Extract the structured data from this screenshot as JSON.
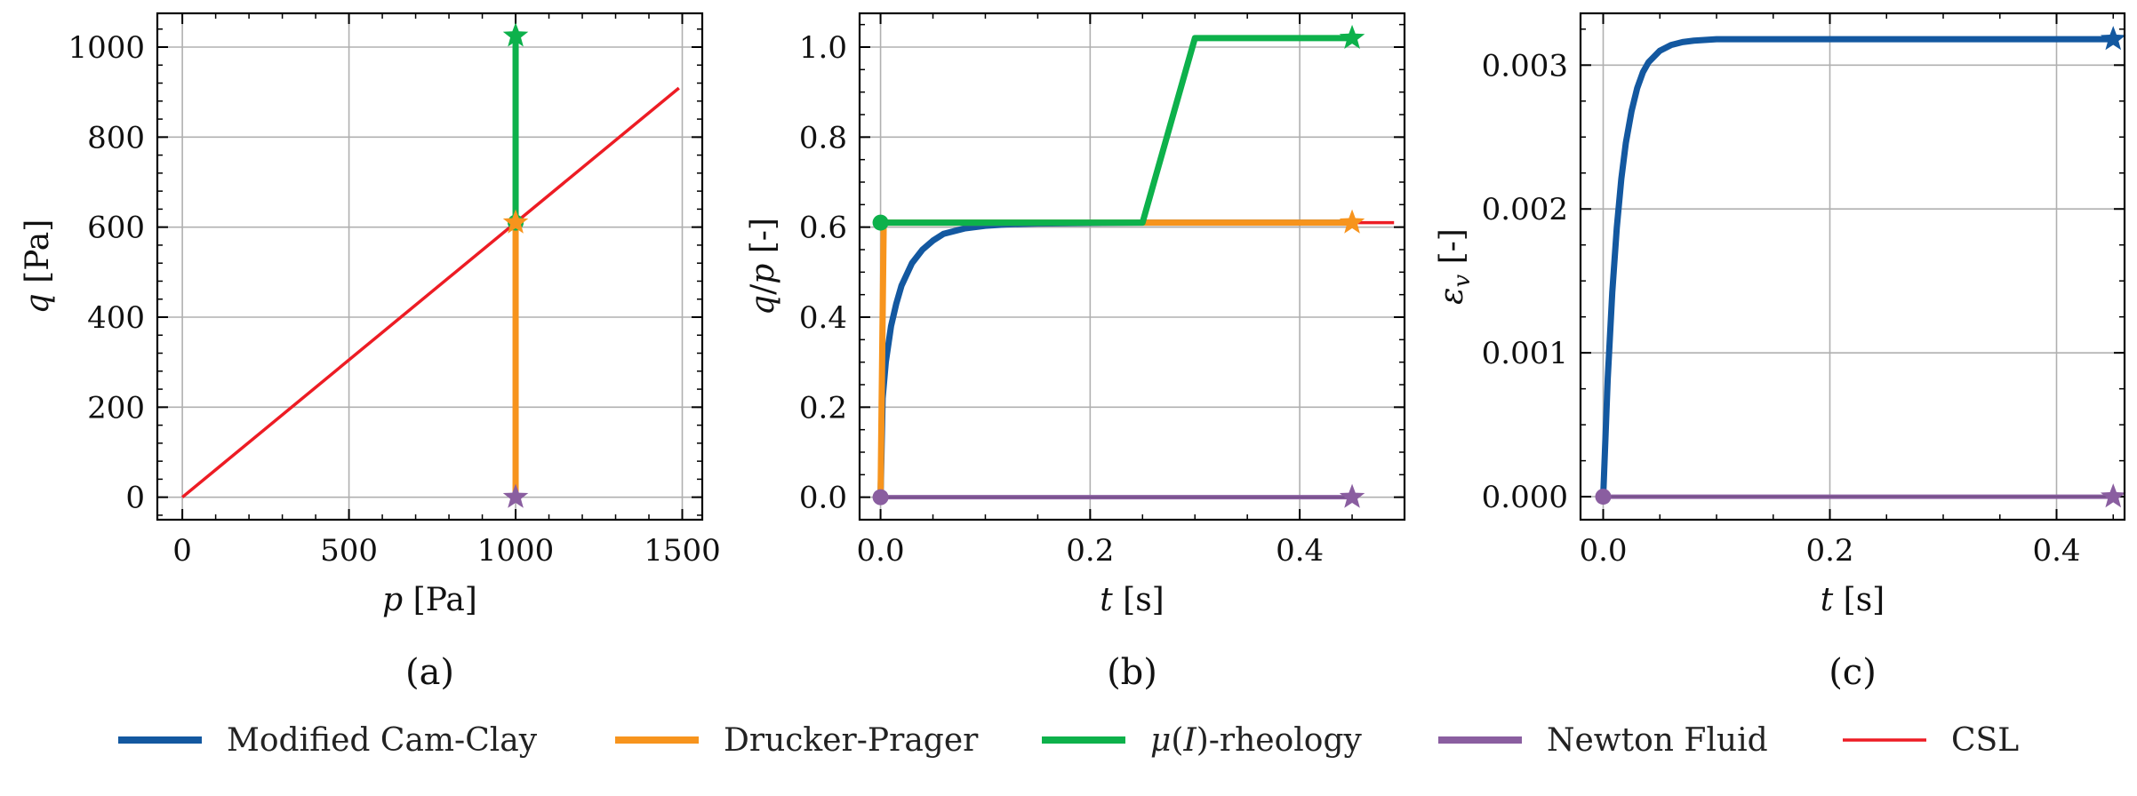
{
  "colors": {
    "mcc": "#1358a0",
    "dp": "#f7941d",
    "mu": "#0db14b",
    "newton": "#8a5ea0",
    "csl": "#ed1c24"
  },
  "legend": [
    {
      "label": "Modified Cam-Clay",
      "color": "#1358a0"
    },
    {
      "label": "Drucker-Prager",
      "color": "#f7941d"
    },
    {
      "label": "μ(I)-rheology",
      "color": "#0db14b"
    },
    {
      "label": "Newton Fluid",
      "color": "#8a5ea0"
    },
    {
      "label": "CSL",
      "color": "#ed1c24"
    }
  ],
  "chart_data": [
    {
      "type": "line",
      "caption": "(a)",
      "xlabel": "p [Pa]",
      "ylabel": "q [Pa]",
      "xlim": [
        -75,
        1560
      ],
      "ylim": [
        -50,
        1075
      ],
      "xticks": [
        0,
        500,
        1000,
        1500
      ],
      "yticks": [
        0,
        200,
        400,
        600,
        800,
        1000
      ],
      "grid": true,
      "series": [
        {
          "key": "csl",
          "name": "CSL",
          "x": [
            0,
            1490
          ],
          "y": [
            0,
            909
          ],
          "marker_end": false,
          "marker_start": false
        },
        {
          "key": "mu",
          "name": "μ(I)-rheology",
          "x": [
            1000,
            1000
          ],
          "y": [
            610,
            1025
          ],
          "marker_start": true,
          "marker_end": true
        },
        {
          "key": "dp",
          "name": "Drucker-Prager",
          "x": [
            1000,
            1000,
            1000
          ],
          "y": [
            0,
            610,
            610
          ],
          "marker_start": false,
          "marker_end": true
        },
        {
          "key": "newton",
          "name": "Newton Fluid",
          "x": [
            1000
          ],
          "y": [
            0
          ],
          "marker_start": false,
          "marker_end": true
        }
      ]
    },
    {
      "type": "line",
      "caption": "(b)",
      "xlabel": "t [s]",
      "ylabel": "q/p [-]",
      "xlim": [
        -0.02,
        0.5
      ],
      "ylim": [
        -0.05,
        1.075
      ],
      "xticks": [
        0.0,
        0.2,
        0.4
      ],
      "yticks": [
        0.0,
        0.2,
        0.4,
        0.6,
        0.8,
        1.0
      ],
      "grid": true,
      "series": [
        {
          "key": "csl",
          "name": "CSL",
          "x": [
            0.0,
            0.49
          ],
          "y": [
            0.61,
            0.61
          ],
          "marker_start": false,
          "marker_end": false
        },
        {
          "key": "newton",
          "name": "Newton Fluid",
          "x": [
            0.0,
            0.45
          ],
          "y": [
            0.0,
            0.0
          ],
          "marker_start": true,
          "marker_end": true
        },
        {
          "key": "mcc",
          "name": "Modified Cam-Clay",
          "x": [
            0.0,
            0.002,
            0.005,
            0.01,
            0.015,
            0.02,
            0.03,
            0.04,
            0.05,
            0.06,
            0.08,
            0.1,
            0.12,
            0.15,
            0.2,
            0.25,
            0.3,
            0.35,
            0.4,
            0.45
          ],
          "y": [
            0.0,
            0.22,
            0.3,
            0.38,
            0.43,
            0.47,
            0.52,
            0.55,
            0.57,
            0.585,
            0.597,
            0.603,
            0.606,
            0.608,
            0.609,
            0.61,
            0.61,
            0.61,
            0.61,
            0.61
          ],
          "marker_start": false,
          "marker_end": false
        },
        {
          "key": "dp",
          "name": "Drucker-Prager",
          "x": [
            0.0,
            0.003,
            0.45
          ],
          "y": [
            0.0,
            0.61,
            0.61
          ],
          "marker_start": false,
          "marker_end": true
        },
        {
          "key": "mu",
          "name": "μ(I)-rheology",
          "x": [
            0.0,
            0.25,
            0.3,
            0.45
          ],
          "y": [
            0.61,
            0.61,
            1.02,
            1.02
          ],
          "marker_start": true,
          "marker_end": true
        }
      ]
    },
    {
      "type": "line",
      "caption": "(c)",
      "xlabel": "t [s]",
      "ylabel": "εv [-]",
      "xlim": [
        -0.02,
        0.46
      ],
      "ylim": [
        -0.00016,
        0.00336
      ],
      "xticks": [
        0.0,
        0.2,
        0.4
      ],
      "yticks": [
        0.0,
        0.001,
        0.002,
        0.003
      ],
      "ytick_labels": [
        "0.000",
        "0.001",
        "0.002",
        "0.003"
      ],
      "grid": true,
      "series": [
        {
          "key": "newton",
          "name": "Newton Fluid",
          "x": [
            0.0,
            0.45
          ],
          "y": [
            0.0,
            0.0
          ],
          "marker_start": true,
          "marker_end": true
        },
        {
          "key": "mcc",
          "name": "Modified Cam-Clay",
          "x": [
            0.0,
            0.004,
            0.008,
            0.012,
            0.016,
            0.02,
            0.025,
            0.03,
            0.035,
            0.04,
            0.05,
            0.06,
            0.07,
            0.08,
            0.1,
            0.12,
            0.15,
            0.2,
            0.3,
            0.45
          ],
          "y": [
            0.0,
            0.00082,
            0.00142,
            0.00187,
            0.00221,
            0.00246,
            0.00268,
            0.00284,
            0.00295,
            0.00302,
            0.0031,
            0.00314,
            0.00316,
            0.00317,
            0.00318,
            0.00318,
            0.00318,
            0.00318,
            0.00318,
            0.00318
          ],
          "marker_start": false,
          "marker_end": true
        }
      ]
    }
  ]
}
